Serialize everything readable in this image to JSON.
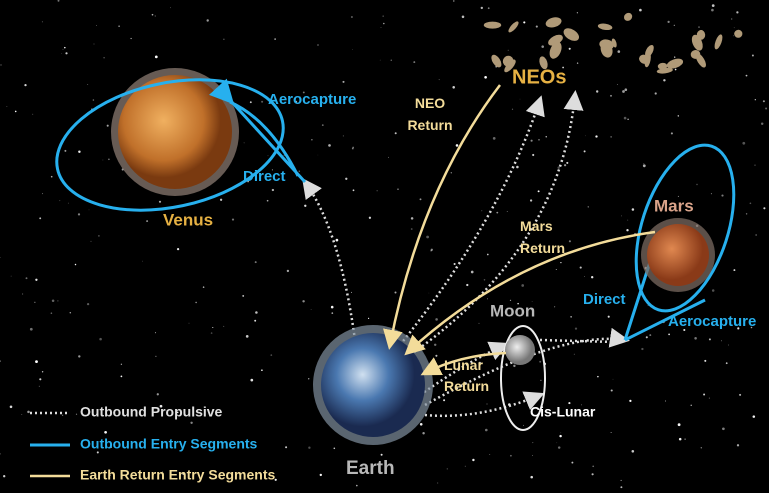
{
  "destinations": {
    "venus": {
      "label": "Venus",
      "aerocapture": "Aerocapture",
      "direct": "Direct"
    },
    "neos": {
      "label": "NEOs",
      "return": [
        "NEO",
        "Return"
      ]
    },
    "mars": {
      "label": "Mars",
      "return": [
        "Mars",
        "Return"
      ],
      "direct": "Direct",
      "aerocapture": "Aerocapture"
    },
    "moon": {
      "label": "Moon",
      "return": [
        "Lunar",
        "Return"
      ],
      "cislunar": "Cis-Lunar"
    },
    "earth": {
      "label": "Earth"
    }
  },
  "legend": [
    "Outbound Propulsive",
    "Outbound Entry Segments",
    "Earth Return Entry Segments"
  ]
}
